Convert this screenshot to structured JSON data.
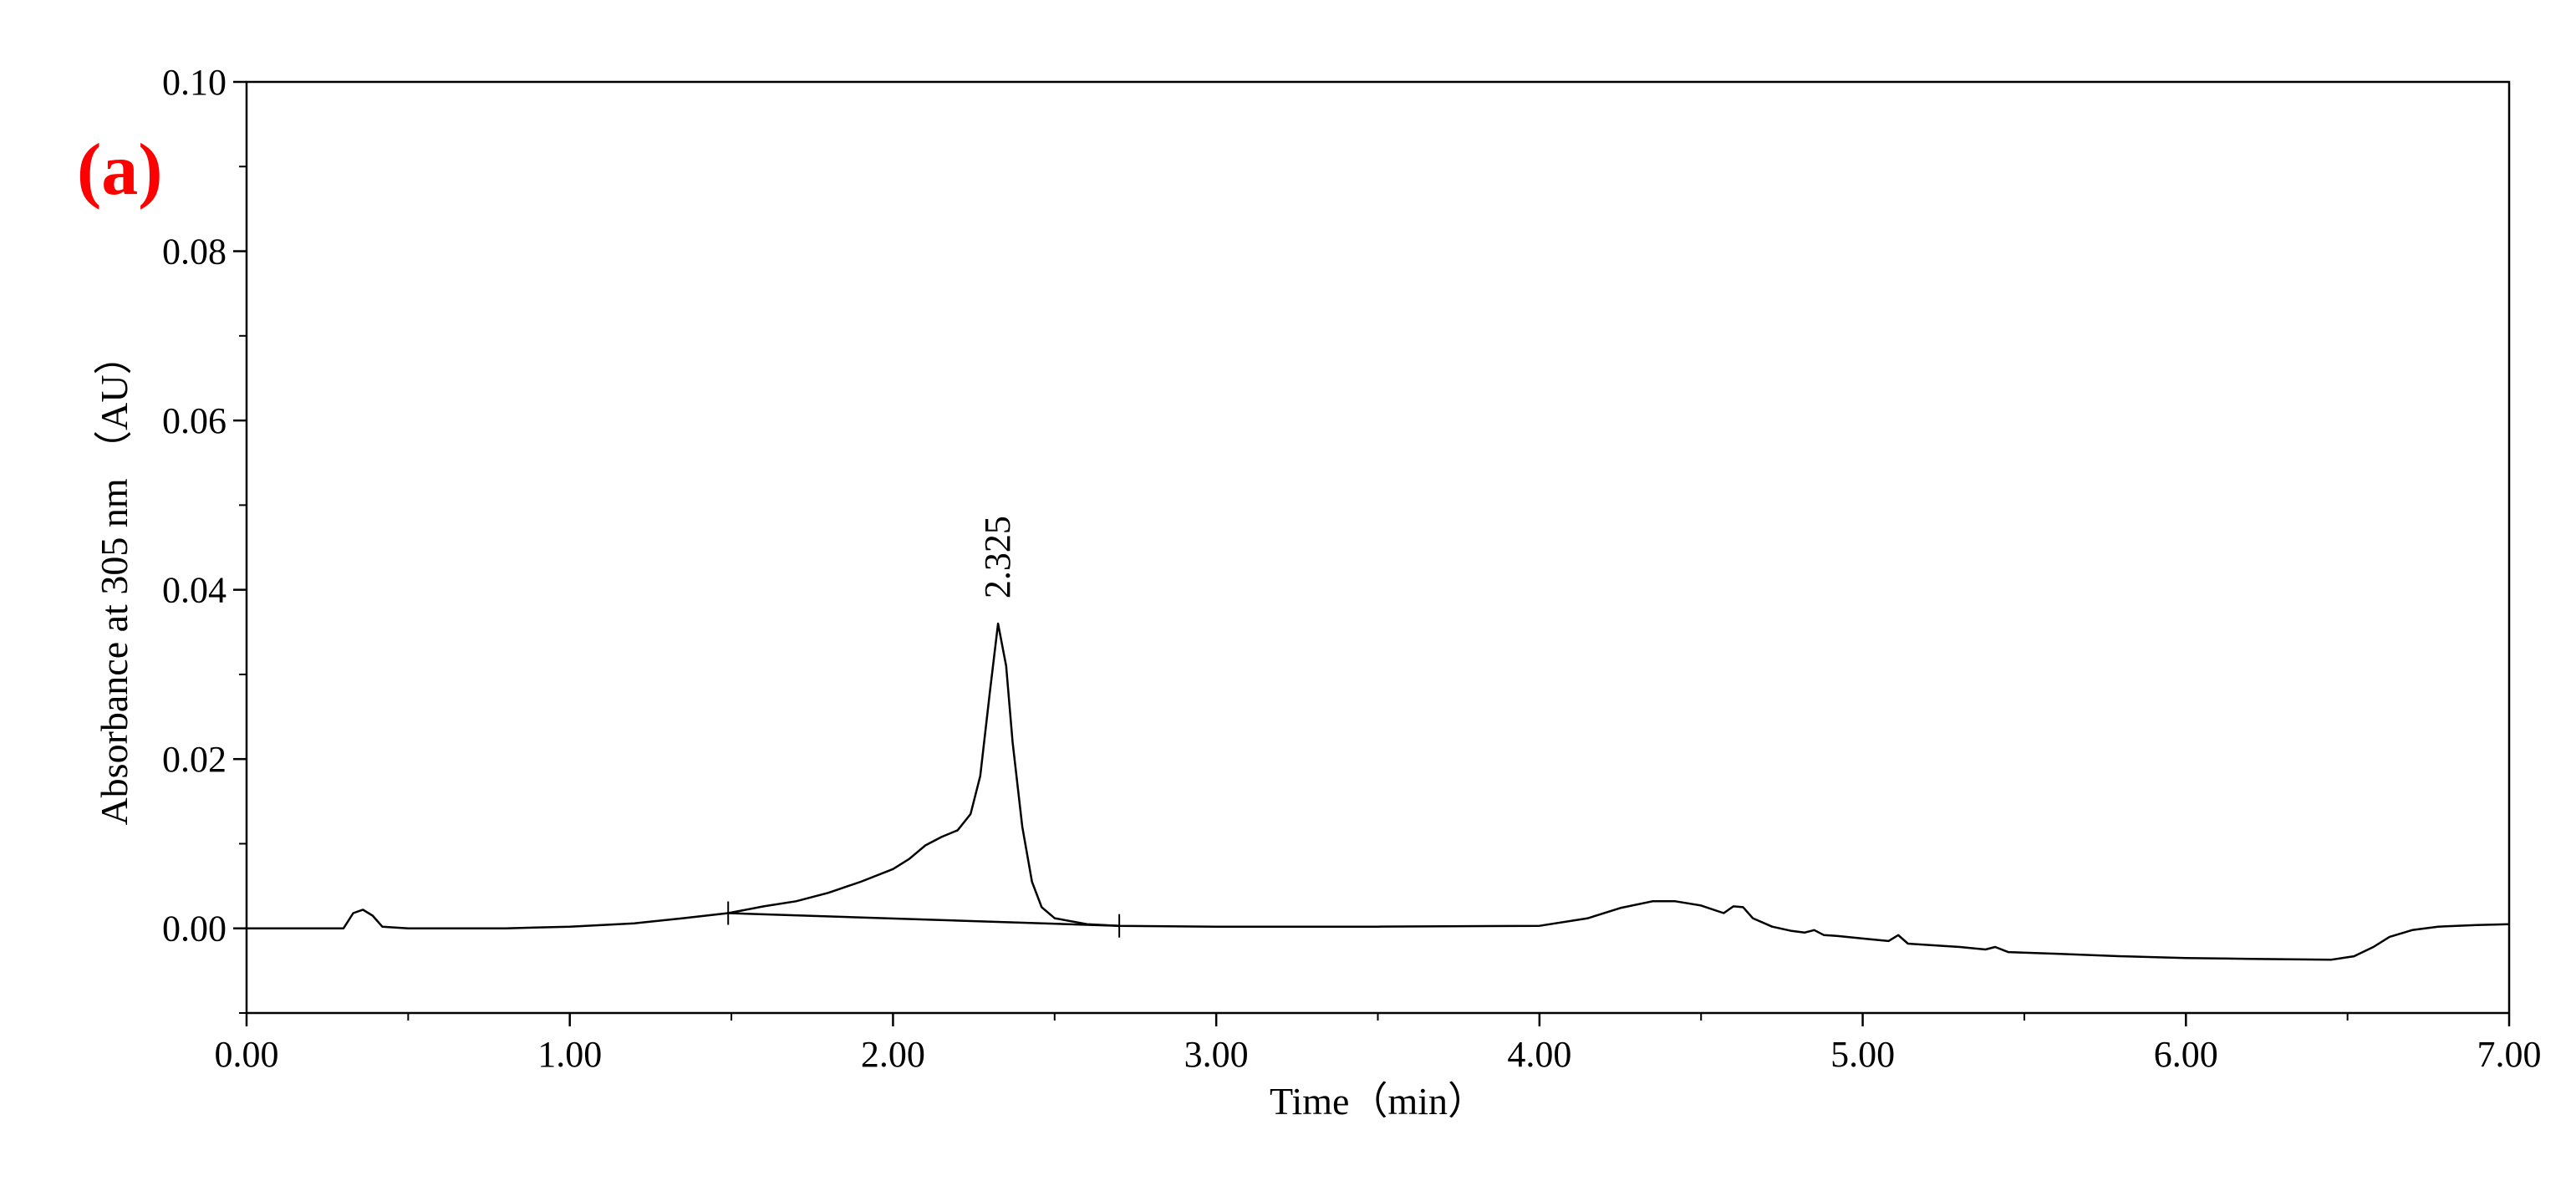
{
  "chart_data": {
    "type": "line",
    "panel_label": "(a)",
    "xlabel": "Time（min）",
    "ylabel": "Absorbance at 305 nm （AU）",
    "xlim": [
      0,
      7
    ],
    "ylim": [
      -0.01,
      0.1
    ],
    "x_ticks": [
      "0.00",
      "1.00",
      "2.00",
      "3.00",
      "4.00",
      "5.00",
      "6.00",
      "7.00"
    ],
    "y_ticks": [
      "0.00",
      "0.02",
      "0.04",
      "0.06",
      "0.08",
      "0.10"
    ],
    "grid": false,
    "peak": {
      "label": "2.325",
      "x": 2.325,
      "y": 0.036
    },
    "integration_baseline": {
      "start": [
        1.49,
        0.0018
      ],
      "end": [
        2.7,
        0.0003
      ]
    },
    "series": [
      {
        "values": [
          [
            0.0,
            0.0
          ],
          [
            0.3,
            0.0
          ],
          [
            0.33,
            0.0018
          ],
          [
            0.36,
            0.0022
          ],
          [
            0.39,
            0.0015
          ],
          [
            0.42,
            0.0002
          ],
          [
            0.5,
            0.0
          ],
          [
            0.8,
            0.0
          ],
          [
            1.0,
            0.0002
          ],
          [
            1.2,
            0.0006
          ],
          [
            1.35,
            0.0012
          ],
          [
            1.49,
            0.0018
          ],
          [
            1.6,
            0.0026
          ],
          [
            1.7,
            0.0032
          ],
          [
            1.8,
            0.0042
          ],
          [
            1.9,
            0.0055
          ],
          [
            2.0,
            0.007
          ],
          [
            2.05,
            0.0082
          ],
          [
            2.1,
            0.0098
          ],
          [
            2.15,
            0.0108
          ],
          [
            2.2,
            0.0116
          ],
          [
            2.24,
            0.0135
          ],
          [
            2.27,
            0.018
          ],
          [
            2.3,
            0.028
          ],
          [
            2.325,
            0.036
          ],
          [
            2.35,
            0.031
          ],
          [
            2.37,
            0.022
          ],
          [
            2.4,
            0.012
          ],
          [
            2.43,
            0.0055
          ],
          [
            2.46,
            0.0025
          ],
          [
            2.5,
            0.0012
          ],
          [
            2.6,
            0.0005
          ],
          [
            2.7,
            0.0003
          ],
          [
            3.0,
            0.0002
          ],
          [
            3.5,
            0.0002
          ],
          [
            4.0,
            0.0003
          ],
          [
            4.15,
            0.0012
          ],
          [
            4.25,
            0.0024
          ],
          [
            4.35,
            0.0032
          ],
          [
            4.42,
            0.0032
          ],
          [
            4.5,
            0.0027
          ],
          [
            4.57,
            0.0018
          ],
          [
            4.6,
            0.0026
          ],
          [
            4.63,
            0.0025
          ],
          [
            4.66,
            0.0012
          ],
          [
            4.72,
            0.0002
          ],
          [
            4.78,
            -0.0003
          ],
          [
            4.82,
            -0.0005
          ],
          [
            4.85,
            -0.0002
          ],
          [
            4.88,
            -0.0008
          ],
          [
            4.92,
            -0.0009
          ],
          [
            5.0,
            -0.0012
          ],
          [
            5.08,
            -0.0015
          ],
          [
            5.11,
            -0.0008
          ],
          [
            5.14,
            -0.0018
          ],
          [
            5.3,
            -0.0022
          ],
          [
            5.38,
            -0.0025
          ],
          [
            5.41,
            -0.0022
          ],
          [
            5.45,
            -0.0028
          ],
          [
            5.6,
            -0.003
          ],
          [
            5.8,
            -0.0033
          ],
          [
            6.0,
            -0.0035
          ],
          [
            6.2,
            -0.0036
          ],
          [
            6.45,
            -0.0037
          ],
          [
            6.52,
            -0.0033
          ],
          [
            6.58,
            -0.0022
          ],
          [
            6.63,
            -0.001
          ],
          [
            6.7,
            -0.0002
          ],
          [
            6.78,
            0.0002
          ],
          [
            6.9,
            0.0004
          ],
          [
            7.0,
            0.0005
          ]
        ]
      }
    ]
  }
}
